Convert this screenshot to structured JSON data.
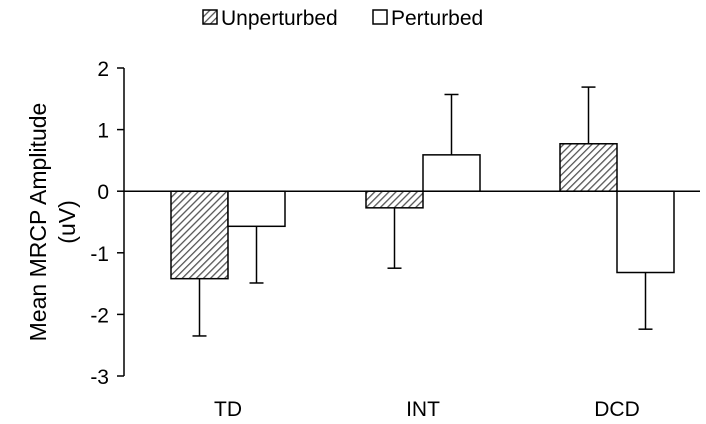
{
  "chart_data": {
    "type": "bar",
    "categories": [
      "TD",
      "INT",
      "DCD"
    ],
    "series": [
      {
        "name": "Unperturbed",
        "values": [
          -1.42,
          -0.27,
          0.77
        ],
        "error": [
          0.93,
          0.98,
          0.92
        ],
        "pattern": "hatched",
        "color": "#808080"
      },
      {
        "name": "Perturbed",
        "values": [
          -0.57,
          0.59,
          -1.32
        ],
        "error": [
          0.92,
          0.98,
          0.92
        ],
        "pattern": "solid",
        "color": "#ffffff"
      }
    ],
    "ylabel_line1": "Mean MRCP Amplitude",
    "ylabel_line2": "(uV)",
    "ylim": [
      -3,
      2
    ],
    "yticks": [
      2,
      1,
      0,
      -1,
      -2,
      -3
    ],
    "legend_position": "top-center",
    "grid": false
  }
}
